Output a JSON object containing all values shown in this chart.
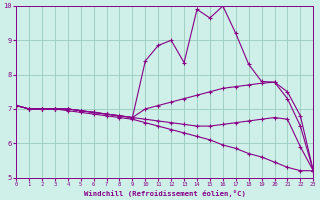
{
  "xlabel": "Windchill (Refroidissement éolien,°C)",
  "x_values": [
    0,
    1,
    2,
    3,
    4,
    5,
    6,
    7,
    8,
    9,
    10,
    11,
    12,
    13,
    14,
    15,
    16,
    17,
    18,
    19,
    20,
    21,
    22,
    23
  ],
  "line1_x": [
    0,
    1,
    2,
    3,
    4,
    5,
    6,
    7,
    8,
    9,
    10,
    11,
    12,
    13,
    14,
    15,
    16,
    17,
    18,
    19,
    20,
    21,
    22,
    23
  ],
  "line1_y": [
    7.1,
    7.0,
    7.0,
    7.0,
    6.95,
    6.9,
    6.85,
    6.8,
    6.75,
    6.7,
    6.6,
    6.5,
    6.4,
    6.3,
    6.2,
    6.1,
    5.95,
    5.85,
    5.7,
    5.6,
    5.45,
    5.3,
    5.2,
    5.2
  ],
  "line2_x": [
    0,
    1,
    2,
    3,
    4,
    5,
    6,
    7,
    8,
    9,
    10,
    11,
    12,
    13,
    14,
    15,
    16,
    17,
    18,
    19,
    20,
    21,
    22,
    23
  ],
  "line2_y": [
    7.1,
    7.0,
    7.0,
    7.0,
    7.0,
    6.95,
    6.9,
    6.85,
    6.8,
    6.75,
    6.7,
    6.65,
    6.6,
    6.55,
    6.5,
    6.5,
    6.55,
    6.6,
    6.65,
    6.7,
    6.75,
    6.7,
    5.9,
    5.2
  ],
  "line3_x": [
    0,
    1,
    2,
    3,
    4,
    5,
    6,
    7,
    8,
    9,
    10,
    11,
    12,
    13,
    14,
    15,
    16,
    17,
    18,
    19,
    20,
    21,
    22,
    23
  ],
  "line3_y": [
    7.1,
    7.0,
    7.0,
    7.0,
    7.0,
    6.95,
    6.9,
    6.85,
    6.8,
    6.75,
    7.0,
    7.1,
    7.2,
    7.3,
    7.4,
    7.5,
    7.6,
    7.65,
    7.7,
    7.75,
    7.78,
    7.5,
    6.8,
    5.2
  ],
  "line4_x": [
    0,
    1,
    2,
    3,
    4,
    5,
    6,
    7,
    8,
    9,
    10,
    11,
    12,
    13,
    14,
    15,
    16,
    17,
    18,
    19,
    20,
    21,
    22,
    23
  ],
  "line4_y": [
    7.1,
    7.0,
    7.0,
    7.0,
    7.0,
    6.95,
    6.9,
    6.85,
    6.8,
    6.75,
    8.4,
    8.85,
    9.0,
    8.35,
    9.9,
    9.65,
    10.0,
    9.2,
    8.3,
    7.8,
    7.78,
    7.3,
    6.5,
    5.2
  ],
  "line_color": "#880088",
  "bg_color": "#cef0e8",
  "grid_color": "#99ccbb",
  "ylim": [
    5,
    10
  ],
  "xlim": [
    0,
    23
  ],
  "yticks": [
    5,
    6,
    7,
    8,
    9,
    10
  ],
  "xticks": [
    0,
    1,
    2,
    3,
    4,
    5,
    6,
    7,
    8,
    9,
    10,
    11,
    12,
    13,
    14,
    15,
    16,
    17,
    18,
    19,
    20,
    21,
    22,
    23
  ]
}
